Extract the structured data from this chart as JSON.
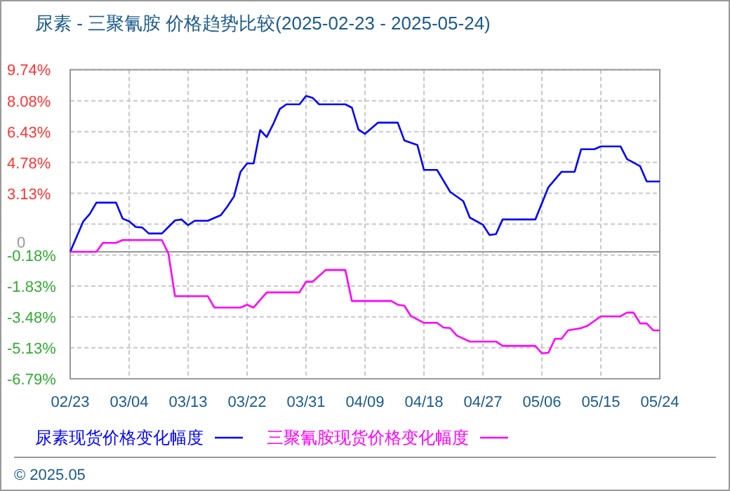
{
  "chart_data": {
    "type": "line",
    "title": "尿素 - 三聚氰胺 价格趋势比较(2025-02-23 - 2025-05-24)",
    "xlim": [
      "2025-02-23",
      "2025-05-24"
    ],
    "xticks": [
      {
        "value": "2025-02-23",
        "label": "02/23"
      },
      {
        "value": "2025-03-04",
        "label": "03/04"
      },
      {
        "value": "2025-03-13",
        "label": "03/13"
      },
      {
        "value": "2025-03-22",
        "label": "03/22"
      },
      {
        "value": "2025-03-31",
        "label": "03/31"
      },
      {
        "value": "2025-04-09",
        "label": "04/09"
      },
      {
        "value": "2025-04-18",
        "label": "04/18"
      },
      {
        "value": "2025-04-27",
        "label": "04/27"
      },
      {
        "value": "2025-05-06",
        "label": "05/06"
      },
      {
        "value": "2025-05-15",
        "label": "05/15"
      },
      {
        "value": "2025-05-24",
        "label": "05/24"
      }
    ],
    "ylim": [
      -6.79,
      9.74
    ],
    "yticks": [
      {
        "value": 9.74,
        "label": "9.74%"
      },
      {
        "value": 8.08,
        "label": "8.08%"
      },
      {
        "value": 6.43,
        "label": "6.43%"
      },
      {
        "value": 4.78,
        "label": "4.78%"
      },
      {
        "value": 3.13,
        "label": "3.13%"
      },
      {
        "value": 1.48,
        "label": null
      },
      {
        "value": -0.18,
        "label": "-0.18%"
      },
      {
        "value": -1.83,
        "label": "-1.83%"
      },
      {
        "value": -3.48,
        "label": "-3.48%"
      },
      {
        "value": -5.13,
        "label": "-5.13%"
      },
      {
        "value": -6.79,
        "label": "-6.79%"
      }
    ],
    "ref_lines": [
      {
        "axis": "y",
        "value": 0,
        "label": "0",
        "color": "#999999"
      }
    ],
    "grid": true,
    "legend": "bottom",
    "series": [
      {
        "name": "尿素现货价格变化幅度",
        "color": "#0000ff",
        "x": [
          "2025-02-23",
          "2025-02-25",
          "2025-02-26",
          "2025-02-27",
          "2025-03-02",
          "2025-03-03",
          "2025-03-04",
          "2025-03-05",
          "2025-03-06",
          "2025-03-07",
          "2025-03-09",
          "2025-03-11",
          "2025-03-12",
          "2025-03-13",
          "2025-03-14",
          "2025-03-16",
          "2025-03-18",
          "2025-03-19",
          "2025-03-20",
          "2025-03-21",
          "2025-03-22",
          "2025-03-23",
          "2025-03-24",
          "2025-03-25",
          "2025-03-26",
          "2025-03-27",
          "2025-03-28",
          "2025-03-30",
          "2025-03-31",
          "2025-04-01",
          "2025-04-02",
          "2025-04-06",
          "2025-04-07",
          "2025-04-08",
          "2025-04-09",
          "2025-04-11",
          "2025-04-14",
          "2025-04-15",
          "2025-04-17",
          "2025-04-18",
          "2025-04-20",
          "2025-04-22",
          "2025-04-24",
          "2025-04-25",
          "2025-04-27",
          "2025-04-28",
          "2025-04-29",
          "2025-04-30",
          "2025-05-05",
          "2025-05-07",
          "2025-05-09",
          "2025-05-11",
          "2025-05-12",
          "2025-05-14",
          "2025-05-15",
          "2025-05-18",
          "2025-05-19",
          "2025-05-21",
          "2025-05-22",
          "2025-05-24"
        ],
        "values": [
          0,
          1.63,
          2.03,
          2.63,
          2.63,
          1.78,
          1.63,
          1.33,
          1.3,
          0.98,
          0.98,
          1.68,
          1.73,
          1.43,
          1.66,
          1.66,
          1.96,
          2.43,
          2.96,
          4.28,
          4.73,
          4.73,
          6.51,
          6.14,
          6.84,
          7.64,
          7.89,
          7.89,
          8.34,
          8.24,
          7.89,
          7.89,
          7.71,
          6.54,
          6.31,
          6.91,
          6.91,
          5.96,
          5.71,
          4.38,
          4.38,
          3.21,
          2.71,
          1.83,
          1.45,
          0.9,
          0.95,
          1.73,
          1.73,
          3.46,
          4.28,
          4.28,
          5.49,
          5.49,
          5.64,
          5.64,
          4.96,
          4.58,
          3.76,
          3.76
        ]
      },
      {
        "name": "三聚氰胺现货价格变化幅度",
        "color": "#ff00ff",
        "x": [
          "2025-02-23",
          "2025-02-27",
          "2025-02-28",
          "2025-03-02",
          "2025-03-03",
          "2025-03-09",
          "2025-03-10",
          "2025-03-11",
          "2025-03-16",
          "2025-03-17",
          "2025-03-21",
          "2025-03-22",
          "2025-03-23",
          "2025-03-25",
          "2025-03-30",
          "2025-03-31",
          "2025-04-01",
          "2025-04-03",
          "2025-04-06",
          "2025-04-07",
          "2025-04-13",
          "2025-04-14",
          "2025-04-15",
          "2025-04-16",
          "2025-04-18",
          "2025-04-20",
          "2025-04-21",
          "2025-04-22",
          "2025-04-23",
          "2025-04-25",
          "2025-04-29",
          "2025-04-30",
          "2025-05-05",
          "2025-05-06",
          "2025-05-07",
          "2025-05-08",
          "2025-05-09",
          "2025-05-10",
          "2025-05-12",
          "2025-05-13",
          "2025-05-15",
          "2025-05-18",
          "2025-05-19",
          "2025-05-20",
          "2025-05-21",
          "2025-05-22",
          "2025-05-23",
          "2025-05-24"
        ],
        "values": [
          0,
          0,
          0.48,
          0.48,
          0.63,
          0.63,
          -0.1,
          -2.37,
          -2.37,
          -2.98,
          -2.98,
          -2.83,
          -2.98,
          -2.17,
          -2.17,
          -1.6,
          -1.6,
          -0.97,
          -0.97,
          -2.63,
          -2.63,
          -2.83,
          -2.88,
          -3.43,
          -3.8,
          -3.8,
          -4.05,
          -4.08,
          -4.48,
          -4.8,
          -4.8,
          -5.03,
          -5.03,
          -5.43,
          -5.4,
          -4.65,
          -4.65,
          -4.2,
          -4.08,
          -3.95,
          -3.45,
          -3.45,
          -3.25,
          -3.25,
          -3.83,
          -3.83,
          -4.2,
          -4.2
        ]
      }
    ],
    "annotations": [
      "© 2025.05"
    ]
  }
}
